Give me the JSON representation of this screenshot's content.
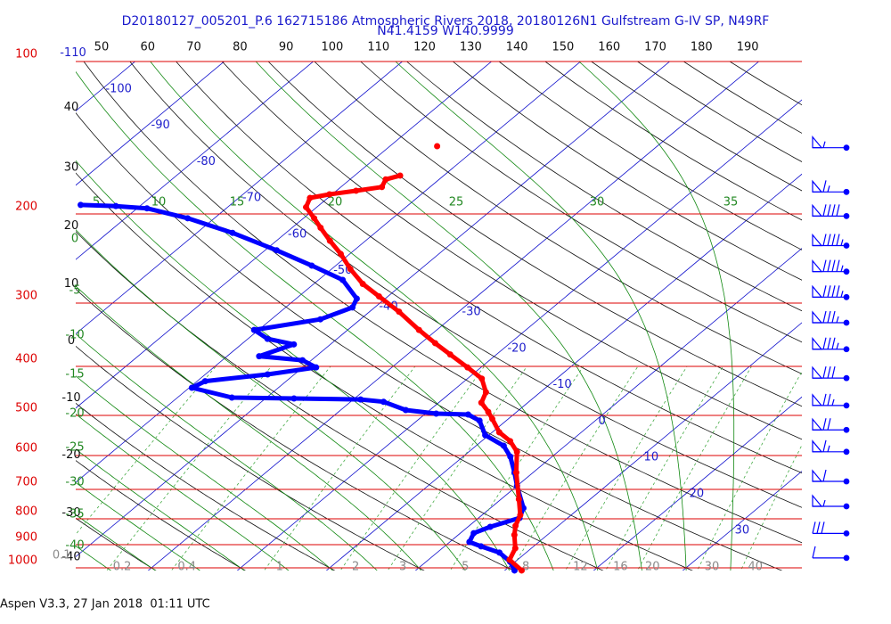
{
  "chart_data": {
    "type": "skewt",
    "title": "D20180127_005201_P.6 162715186 Atmospheric Rivers 2018, 20180126N1 Gulfstream G-IV SP, N49RF",
    "subtitle": "N41.4159 W140.9999",
    "footer": "Aspen V3.3, 27 Jan 2018  01:11 UTC",
    "isobars": [
      100,
      200,
      300,
      400,
      500,
      600,
      700,
      800,
      900,
      1000
    ],
    "isotherms": [
      -110,
      -100,
      -90,
      -80,
      -70,
      -60,
      -50,
      -40,
      -30,
      -20,
      -10,
      0,
      10,
      20,
      30
    ],
    "dry_adiabats_left": [
      40,
      30,
      20,
      10,
      0,
      -10,
      -20,
      -30,
      -40
    ],
    "dry_adiabats_top": [
      50,
      60,
      70,
      80,
      90,
      100,
      110,
      120,
      130,
      140,
      150,
      160,
      170,
      180,
      190
    ],
    "moist_adiabats_top": [
      5,
      10,
      15,
      20,
      25,
      30,
      35
    ],
    "moist_adiabats_left": [
      0,
      -5,
      -10,
      -15,
      -20,
      -25,
      -30,
      -35,
      -40
    ],
    "mixing_ratios": [
      0.1,
      0.2,
      0.4,
      1,
      2,
      3,
      5,
      8,
      12,
      16,
      20,
      30,
      40
    ],
    "temperature": {
      "color": "#ff0000",
      "pressure": [
        1012,
        964,
        915,
        861,
        826,
        787,
        732,
        648,
        590,
        562,
        540,
        508,
        492,
        472,
        450,
        423,
        402,
        379,
        360,
        339,
        312,
        291,
        275,
        257,
        240,
        226,
        213,
        204,
        194,
        186,
        183,
        180,
        177,
        171,
        168,
        null,
        147
      ],
      "values": [
        11.9,
        9.1,
        8.2,
        6.3,
        5.2,
        4.3,
        2.0,
        -1.9,
        -4.6,
        -6.8,
        -9.2,
        -11.8,
        -13.2,
        -15.2,
        -16.1,
        -18.4,
        -21.5,
        -25.2,
        -28.4,
        -32.0,
        -36.7,
        -41.0,
        -44.5,
        -47.9,
        -51.0,
        -54.0,
        -56.8,
        -58.8,
        -61.2,
        -62.0,
        -60.3,
        -57.8,
        -55.4,
        -56.0,
        -54.9,
        null,
        -54.7
      ]
    },
    "dewpoint": {
      "color": "#0000ff",
      "pressure": [
        1012,
        972,
        933,
        907,
        889,
        854,
        830,
        797,
        762,
        689,
        648,
        603,
        574,
        547,
        512,
        498,
        496,
        488,
        470,
        465,
        463,
        461,
        441,
        428,
        415,
        402,
        389,
        382,
        362,
        353,
        339,
        323,
        306,
        294,
        270,
        253,
        236,
        218,
        204,
        195,
        193,
        192
      ],
      "values": [
        11.1,
        9.4,
        7.0,
        4.1,
        2.2,
        1.5,
        2.5,
        4.6,
        3.7,
        0.0,
        -2.1,
        -4.7,
        -6.9,
        -10.4,
        -13.0,
        -15.1,
        -18.8,
        -22.7,
        -26.3,
        -29.2,
        -36.8,
        -43.9,
        -49.7,
        -49.1,
        -43.0,
        -38.5,
        -41.0,
        -46.4,
        -44.1,
        -47.8,
        -50.5,
        -44.5,
        -42.5,
        -43.2,
        -47.3,
        -52.7,
        -58.7,
        -66.0,
        -73.0,
        -78.9,
        -82.7,
        -86.8
      ]
    },
    "wind": {
      "color": "#0000ff",
      "pressure": [
        148,
        181,
        202,
        231,
        260,
        292,
        328,
        370,
        422,
        478,
        534,
        590,
        675,
        756,
        855,
        956
      ],
      "speed": [
        55,
        65,
        90,
        95,
        95,
        95,
        85,
        85,
        80,
        75,
        70,
        65,
        60,
        55,
        30,
        10
      ]
    }
  }
}
